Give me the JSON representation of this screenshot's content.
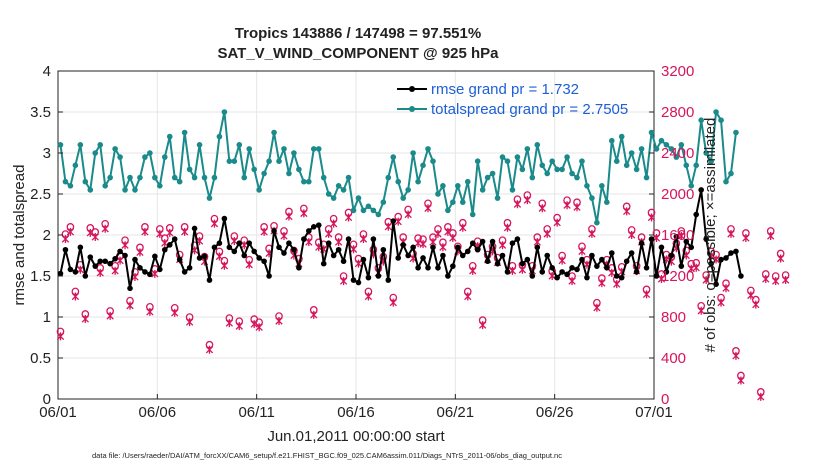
{
  "colors": {
    "rmse": "#000000",
    "spread": "#1a8a8a",
    "obs": "#d6165c",
    "legend_text": "#1d5fd8",
    "axis": "#222222"
  },
  "chart_data": {
    "type": "line",
    "title": "Tropics 143886 / 147498 = 97.551%",
    "subtitle": "SAT_V_WIND_COMPONENT @ 925 hPa",
    "xlabel": "Jun.01,2011 00:00:00 start",
    "ylabel": "rmse and totalspread",
    "ylabel_right": "# of obs: o=possible; ×=assimilated",
    "x_tick_labels": [
      "06/01",
      "06/06",
      "06/11",
      "06/16",
      "06/21",
      "06/26",
      "07/01"
    ],
    "x_ticks_days": [
      0,
      5,
      10,
      15,
      20,
      25,
      30
    ],
    "xlim_days": [
      0,
      30
    ],
    "ylim": [
      0,
      4
    ],
    "y_ticks": [
      "0",
      "0.5",
      "1",
      "1.5",
      "2",
      "2.5",
      "3",
      "3.5",
      "4"
    ],
    "ylim_right": [
      0,
      3200
    ],
    "y_ticks_right": [
      "0",
      "400",
      "800",
      "1200",
      "1600",
      "2000",
      "2400",
      "2800",
      "3200"
    ],
    "legend_location": "top-right",
    "x_step_days": 0.25,
    "x_start_day": 0.125,
    "series": [
      {
        "name": "rmse grand pr = 1.732",
        "axis": "left",
        "marker": "dot",
        "values": [
          1.53,
          1.82,
          1.58,
          1.55,
          1.85,
          1.5,
          1.73,
          1.62,
          1.68,
          1.68,
          1.65,
          1.71,
          1.8,
          1.75,
          1.35,
          1.7,
          1.6,
          1.55,
          1.52,
          1.74,
          1.58,
          1.82,
          1.88,
          1.95,
          1.7,
          1.55,
          1.6,
          2.08,
          1.72,
          1.74,
          1.45,
          1.85,
          1.9,
          2.2,
          1.85,
          1.8,
          1.9,
          1.75,
          1.9,
          1.8,
          1.72,
          1.68,
          1.5,
          2.05,
          1.85,
          1.78,
          1.9,
          1.82,
          1.6,
          1.95,
          2.05,
          2.1,
          2.12,
          1.65,
          1.9,
          1.75,
          1.82,
          1.68,
          1.95,
          1.45,
          1.42,
          1.7,
          1.48,
          1.95,
          1.5,
          1.82,
          1.45,
          2.17,
          1.72,
          1.88,
          1.75,
          1.85,
          1.6,
          1.72,
          1.6,
          1.85,
          1.6,
          1.75,
          1.5,
          1.62,
          1.85,
          1.75,
          1.8,
          1.9,
          1.82,
          1.92,
          1.68,
          1.92,
          1.65,
          1.75,
          1.55,
          1.9,
          1.95,
          1.65,
          1.7,
          1.5,
          1.85,
          1.55,
          1.75,
          1.6,
          1.48,
          1.55,
          1.52,
          1.6,
          1.58,
          1.7,
          1.48,
          1.75,
          1.62,
          1.7,
          1.6,
          1.78,
          1.5,
          1.48,
          1.68,
          1.78,
          1.55,
          1.9,
          1.6,
          1.95,
          1.5,
          1.85,
          1.55,
          1.75,
          1.98,
          1.62,
          1.92,
          1.85,
          2.25,
          2.55,
          1.95,
          1.65,
          1.4,
          1.7,
          1.72,
          1.78,
          1.8,
          1.5
        ]
      },
      {
        "name": "totalspread grand pr = 2.7505",
        "axis": "left",
        "marker": "dot",
        "values": [
          3.1,
          2.65,
          2.6,
          2.85,
          3.1,
          2.65,
          2.55,
          3,
          3.1,
          2.6,
          2.7,
          3.05,
          2.95,
          2.55,
          2.7,
          2.55,
          2.7,
          2.95,
          3.0,
          2.7,
          2.6,
          2.95,
          3.2,
          2.7,
          2.65,
          3.25,
          2.8,
          2.7,
          3.1,
          2.7,
          2.45,
          2.7,
          3.2,
          3.5,
          2.9,
          2.9,
          3.1,
          2.7,
          3.05,
          2.8,
          2.55,
          2.75,
          2.9,
          3.25,
          2.9,
          3.05,
          2.75,
          3.0,
          2.8,
          2.65,
          2.65,
          3.05,
          3.05,
          2.7,
          2.5,
          2.45,
          2.6,
          2.55,
          2.7,
          2.3,
          2.45,
          2.3,
          2.35,
          2.3,
          2.25,
          2.4,
          2.7,
          2.95,
          2.65,
          2.45,
          2.55,
          3.0,
          2.65,
          2.85,
          3.05,
          2.9,
          2.5,
          2.6,
          2.3,
          2.4,
          2.6,
          2.4,
          2.65,
          2.25,
          2.9,
          2.55,
          2.7,
          2.75,
          2.45,
          2.95,
          2.9,
          2.55,
          2.95,
          2.8,
          3.05,
          2.7,
          3.1,
          2.85,
          2.75,
          2.9,
          2.8,
          2.8,
          2.95,
          2.75,
          2.7,
          2.9,
          2.6,
          2.45,
          2.15,
          2.6,
          2.4,
          3.15,
          2.9,
          3.2,
          2.85,
          3.0,
          2.8,
          3.05,
          2.7,
          3.25,
          3.05,
          3.15,
          3.1,
          3.05,
          2.95,
          3.1,
          2.85,
          2.6,
          2.85,
          3.4,
          3.0,
          2.9,
          3.5,
          3.4,
          2.65,
          2.75,
          3.25
        ]
      },
      {
        "name": "# of obs possible",
        "axis": "right",
        "marker": "circle",
        "values": [
          630,
          1580,
          1650,
          1020,
          1280,
          800,
          1640,
          1600,
          1250,
          1680,
          830,
          1270,
          1370,
          1520,
          930,
          1210,
          1450,
          1650,
          870,
          1240,
          1630,
          1540,
          1640,
          860,
          1380,
          1650,
          770,
          1470,
          1560,
          1360,
          500,
          1730,
          1410,
          1320,
          760,
          1560,
          730,
          1520,
          1330,
          750,
          720,
          1650,
          1440,
          1660,
          780,
          1610,
          1800,
          1420,
          1340,
          1830,
          1550,
          840,
          1500,
          1480,
          1630,
          1730,
          1550,
          1170,
          1790,
          1480,
          1340,
          1580,
          1020,
          1430,
          1250,
          1360,
          1700,
          960,
          1750,
          1550,
          1820,
          1390,
          1540,
          1530,
          1880,
          1550,
          1630,
          1500,
          1650,
          1590,
          1460,
          1690,
          1020,
          1270,
          1510,
          740,
          1380,
          1460,
          1350,
          1520,
          1690,
          1270,
          1920,
          1280,
          1960,
          1270,
          1550,
          1880,
          1630,
          1220,
          1740,
          1370,
          1910,
          1170,
          1890,
          1460,
          1330,
          1630,
          910,
          1150,
          1330,
          1250,
          1140,
          1260,
          1850,
          1620,
          1270,
          1550,
          1040,
          1790,
          1590,
          1190,
          1380,
          1360,
          1490,
          1610,
          1420,
          1290,
          1300,
          880,
          1180,
          1410,
          1380,
          960,
          1100,
          1630,
          440,
          200,
          1590,
          1030,
          940,
          40,
          1190,
          1610,
          1170,
          1390,
          1180
        ]
      }
    ]
  },
  "footer": "data file: /Users/raeder/DAI/ATM_forcXX/CAM6_setup/f.e21.FHIST_BGC.f09_025.CAM6assim.011/Diags_NTrS_2011-06/obs_diag_output.nc"
}
